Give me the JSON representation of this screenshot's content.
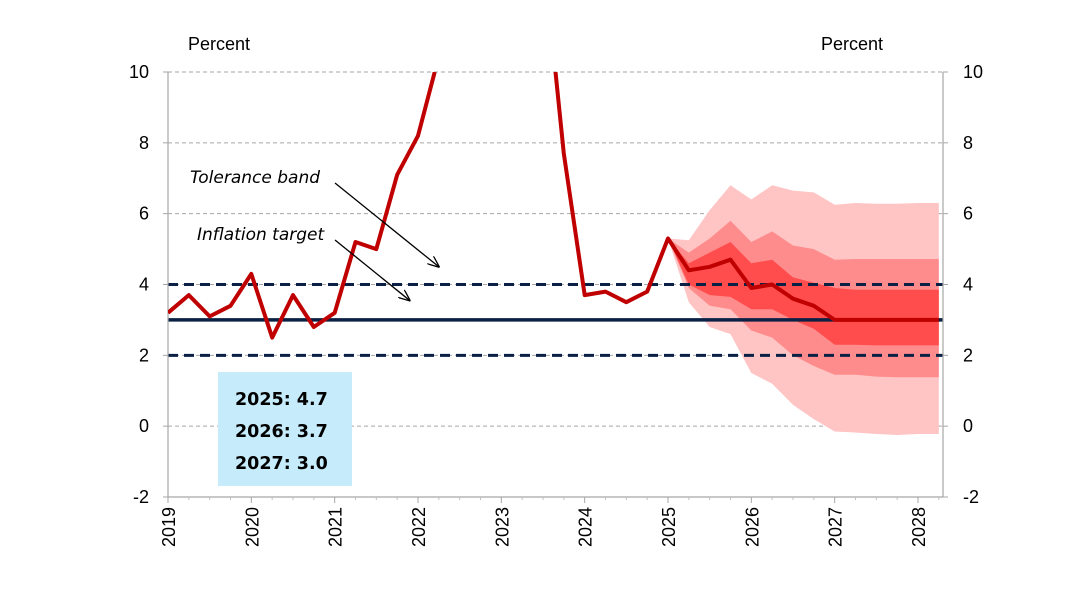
{
  "chart_data": {
    "type": "line",
    "title": "",
    "left_unit_label": "Percent",
    "right_unit_label": "Percent",
    "xlabel": "",
    "ylabel": "",
    "xlim": [
      2019,
      2028.3
    ],
    "ylim": [
      -2,
      10
    ],
    "y_ticks": [
      -2,
      0,
      2,
      4,
      6,
      8,
      10
    ],
    "x_ticks": [
      "2019",
      "2020",
      "2021",
      "2022",
      "2023",
      "2024",
      "2025",
      "2026",
      "2027",
      "2028"
    ],
    "grid": "horizontal dashed",
    "colors": {
      "actual_line": "#c00000",
      "target_line": "#0b2045",
      "band_outer": "#ffc4c4",
      "band_mid": "#ff8c8c",
      "band_inner": "#ff4d4d",
      "grid": "#a6a6a6",
      "box_bg": "#c6ecfb"
    },
    "series": [
      {
        "name": "",
        "role": "actual",
        "x": [
          2019.0,
          2019.25,
          2019.5,
          2019.75,
          2020.0,
          2020.25,
          2020.5,
          2020.75,
          2021.0,
          2021.25,
          2021.5,
          2021.75,
          2022.0,
          2022.2,
          2023.65,
          2023.75,
          2024.0,
          2024.25,
          2024.5,
          2024.75,
          2025.0,
          2025.25,
          2025.5,
          2025.75,
          2026.0,
          2026.25,
          2026.5,
          2026.75,
          2027.0,
          2027.25,
          2027.5,
          2027.75,
          2028.0,
          2028.25
        ],
        "y": [
          3.2,
          3.7,
          3.1,
          3.4,
          4.3,
          2.5,
          3.7,
          2.8,
          3.2,
          5.2,
          5.0,
          7.1,
          8.2,
          10.0,
          10.0,
          7.7,
          3.7,
          3.8,
          3.5,
          3.8,
          5.3,
          4.4,
          4.5,
          4.7,
          3.9,
          4.0,
          3.6,
          3.4,
          3.0,
          3.0,
          3.0,
          3.0,
          3.0,
          3.0
        ],
        "break_after_index": 13
      },
      {
        "name": "",
        "role": "inflation_target",
        "y": 3.0
      },
      {
        "name": "",
        "role": "tolerance_band_upper",
        "y": 4.0
      },
      {
        "name": "",
        "role": "tolerance_band_lower",
        "y": 2.0
      }
    ],
    "fan_chart": {
      "x": [
        2025.0,
        2025.25,
        2025.5,
        2025.75,
        2026.0,
        2026.25,
        2026.5,
        2026.75,
        2027.0,
        2027.25,
        2027.5,
        2027.75,
        2028.0,
        2028.25
      ],
      "bands": [
        {
          "level": "outer",
          "upper": [
            5.3,
            5.25,
            6.1,
            6.8,
            6.4,
            6.8,
            6.65,
            6.6,
            6.25,
            6.3,
            6.28,
            6.28,
            6.3,
            6.3
          ],
          "lower": [
            5.3,
            3.5,
            2.8,
            2.6,
            1.5,
            1.2,
            0.6,
            0.2,
            -0.15,
            -0.18,
            -0.22,
            -0.25,
            -0.22,
            -0.22
          ]
        },
        {
          "level": "middle",
          "upper": [
            5.3,
            4.9,
            5.3,
            5.8,
            5.2,
            5.5,
            5.1,
            5.0,
            4.7,
            4.72,
            4.72,
            4.72,
            4.72,
            4.72
          ],
          "lower": [
            5.3,
            3.9,
            3.4,
            3.3,
            2.7,
            2.5,
            2.0,
            1.7,
            1.45,
            1.45,
            1.4,
            1.38,
            1.38,
            1.38
          ]
        },
        {
          "level": "inner",
          "upper": [
            5.3,
            4.6,
            4.9,
            5.2,
            4.6,
            4.7,
            4.2,
            4.05,
            3.9,
            3.85,
            3.85,
            3.85,
            3.85,
            3.85
          ],
          "lower": [
            5.3,
            4.0,
            3.7,
            3.65,
            3.3,
            3.3,
            3.0,
            2.75,
            2.3,
            2.3,
            2.28,
            2.28,
            2.28,
            2.28
          ]
        }
      ]
    },
    "annotations": [
      {
        "text": "Tolerance band",
        "points_to": {
          "x": 2022.25,
          "y": 4.5
        }
      },
      {
        "text": "Inflation target",
        "points_to": {
          "x": 2021.9,
          "y": 3.55
        }
      }
    ],
    "forecast_box": [
      "2025: 4.7",
      "2026: 3.7",
      "2027: 3.0"
    ]
  }
}
